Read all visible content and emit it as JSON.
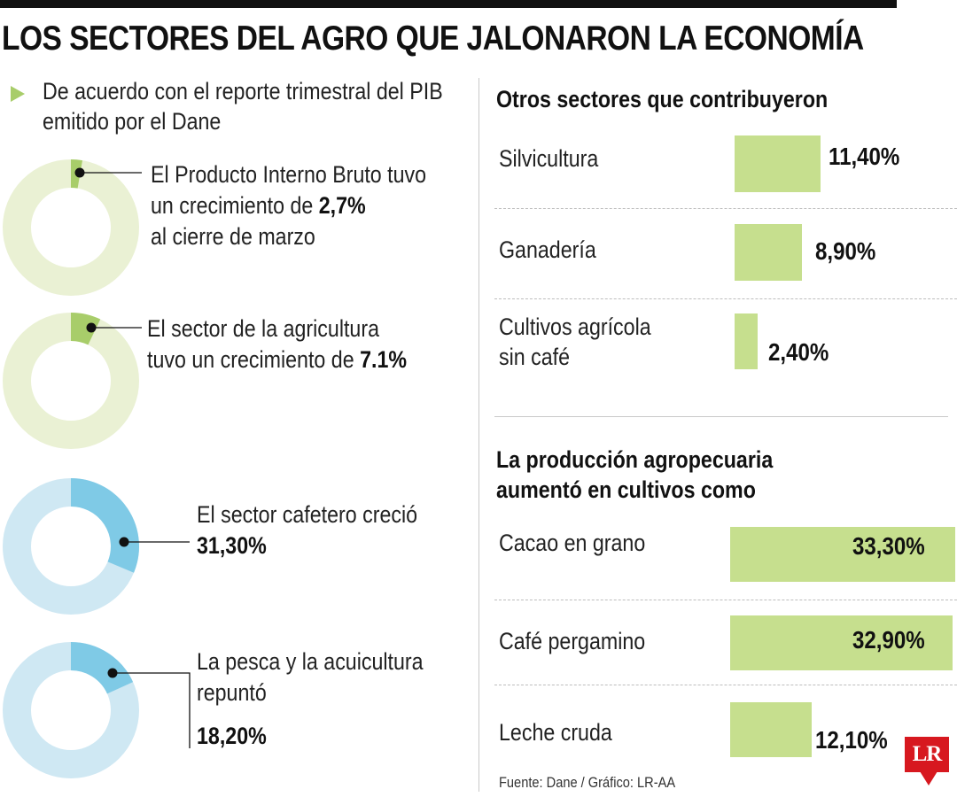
{
  "title": "LOS SECTORES DEL AGRO QUE JALONARON LA ECONOMÍA",
  "intro": {
    "line1": "De acuerdo con el reporte trimestral del PIB",
    "line2": "emitido por el Dane"
  },
  "colors": {
    "green_track": "#eaf1d4",
    "green_fill": "#a8cd6a",
    "blue_track": "#cfe8f3",
    "blue_fill": "#7fcae6",
    "bar": "#c6df8e"
  },
  "donuts": [
    {
      "text1": "El Producto Interno Bruto tuvo",
      "text2": "un crecimiento de ",
      "bold": "2,7%",
      "text3": "al cierre de marzo"
    },
    {
      "text1": "El sector de la agricultura",
      "text2": "tuvo un crecimiento de ",
      "bold": "7.1%"
    },
    {
      "text1": "El sector cafetero creció",
      "bold": "31,30%"
    },
    {
      "text1": "La pesca y la acuicultura",
      "text2": "repuntó",
      "bold": "18,20%"
    }
  ],
  "chart_data": [
    {
      "type": "pie",
      "categories": [
        "Producto Interno Bruto",
        "Sector de la agricultura",
        "Sector cafetero",
        "Pesca y acuicultura"
      ],
      "values": [
        2.7,
        7.1,
        31.3,
        18.2
      ]
    },
    {
      "type": "bar",
      "title": "Otros sectores que contribuyeron",
      "categories": [
        "Silvicultura",
        "Ganadería",
        "Cultivos agrícola sin café"
      ],
      "values": [
        11.4,
        8.9,
        2.4
      ],
      "labels": [
        "11,40%",
        "8,90%",
        "2,40%"
      ]
    },
    {
      "type": "bar",
      "title": "La producción agropecuaria aumentó en cultivos como",
      "categories": [
        "Cacao en grano",
        "Café pergamino",
        "Leche cruda"
      ],
      "values": [
        33.3,
        32.9,
        12.1
      ],
      "labels": [
        "33,30%",
        "32,90%",
        "12,10%"
      ]
    }
  ],
  "others": {
    "title": "Otros sectores que contribuyeron",
    "rows": [
      {
        "label1": "Silvicultura",
        "label2": "",
        "value": "11,40%"
      },
      {
        "label1": "Ganadería",
        "label2": "",
        "value": "8,90%"
      },
      {
        "label1": "Cultivos agrícola",
        "label2": "sin café",
        "value": "2,40%"
      }
    ]
  },
  "production": {
    "title1": "La producción agropecuaria",
    "title2": "aumentó en cultivos como",
    "rows": [
      {
        "label": "Cacao en grano",
        "value": "33,30%"
      },
      {
        "label": "Café pergamino",
        "value": "32,90%"
      },
      {
        "label": "Leche cruda",
        "value": "12,10%"
      }
    ]
  },
  "source": "Fuente: Dane / Gráfico: LR-AA",
  "logo": "LR"
}
